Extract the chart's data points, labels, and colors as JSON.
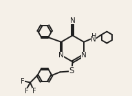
{
  "background_color": "#f5f0e8",
  "line_color": "#1c1c1c",
  "line_width": 1.4,
  "font_size": 7.5,
  "figsize": [
    1.92,
    1.39
  ],
  "dpi": 100,
  "xlim": [
    0,
    10
  ],
  "ylim": [
    0,
    7.2
  ]
}
